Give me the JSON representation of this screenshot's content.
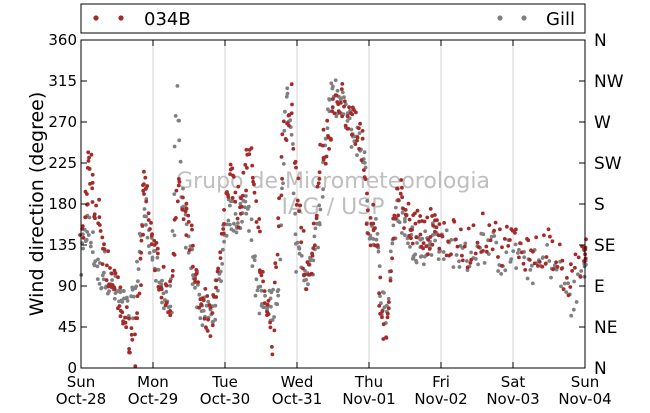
{
  "chart_data": {
    "type": "scatter",
    "title": "",
    "ylabel": "Wind direction (degree)",
    "xlabel": "",
    "ylim": [
      0,
      360
    ],
    "yticks": [
      0,
      45,
      90,
      135,
      180,
      225,
      270,
      315,
      360
    ],
    "xlim": [
      "2012-10-28 00:00",
      "2012-11-04 00:00"
    ],
    "x_ticks": [
      {
        "day": "Sun",
        "date": "Oct-28"
      },
      {
        "day": "Mon",
        "date": "Oct-29"
      },
      {
        "day": "Tue",
        "date": "Oct-30"
      },
      {
        "day": "Wed",
        "date": "Oct-31"
      },
      {
        "day": "Thu",
        "date": "Nov-01"
      },
      {
        "day": "Fri",
        "date": "Nov-02"
      },
      {
        "day": "Sat",
        "date": "Nov-03"
      },
      {
        "day": "Sun",
        "date": "Nov-04"
      }
    ],
    "compass_labels": [
      "N",
      "NE",
      "E",
      "SE",
      "S",
      "SW",
      "W",
      "NW",
      "N"
    ],
    "grid": "vertical",
    "legend_position": "top",
    "watermark": [
      "Grupo de Micrometeorologia",
      "IAG / USP"
    ],
    "series": [
      {
        "name": "034B",
        "color": "#a52a2a",
        "points": [
          [
            "2012-10-28 00:00",
            130
          ],
          [
            "2012-10-28 02:00",
            185
          ],
          [
            "2012-10-28 03:00",
            230
          ],
          [
            "2012-10-28 04:00",
            190
          ],
          [
            "2012-10-28 06:00",
            160
          ],
          [
            "2012-10-28 08:00",
            120
          ],
          [
            "2012-10-28 10:00",
            100
          ],
          [
            "2012-10-28 12:00",
            85
          ],
          [
            "2012-10-28 14:00",
            60
          ],
          [
            "2012-10-28 16:00",
            40
          ],
          [
            "2012-10-28 18:00",
            20
          ],
          [
            "2012-10-28 20:00",
            120
          ],
          [
            "2012-10-28 21:00",
            200
          ],
          [
            "2012-10-28 22:00",
            185
          ],
          [
            "2012-10-29 00:00",
            130
          ],
          [
            "2012-10-29 02:00",
            110
          ],
          [
            "2012-10-29 04:00",
            90
          ],
          [
            "2012-10-29 06:00",
            75
          ],
          [
            "2012-10-29 08:00",
            200
          ],
          [
            "2012-10-29 10:00",
            180
          ],
          [
            "2012-10-29 12:00",
            145
          ],
          [
            "2012-10-29 14:00",
            110
          ],
          [
            "2012-10-29 16:00",
            75
          ],
          [
            "2012-10-29 18:00",
            60
          ],
          [
            "2012-10-29 20:00",
            50
          ],
          [
            "2012-10-29 22:00",
            100
          ],
          [
            "2012-10-30 00:00",
            175
          ],
          [
            "2012-10-30 02:00",
            210
          ],
          [
            "2012-10-30 04:00",
            170
          ],
          [
            "2012-10-30 06:00",
            200
          ],
          [
            "2012-10-30 08:00",
            230
          ],
          [
            "2012-10-30 10:00",
            190
          ],
          [
            "2012-10-30 12:00",
            120
          ],
          [
            "2012-10-30 14:00",
            60
          ],
          [
            "2012-10-30 16:00",
            30
          ],
          [
            "2012-10-30 18:00",
            180
          ],
          [
            "2012-10-30 20:00",
            260
          ],
          [
            "2012-10-30 22:00",
            300
          ],
          [
            "2012-10-31 00:00",
            200
          ],
          [
            "2012-10-31 02:00",
            130
          ],
          [
            "2012-10-31 04:00",
            90
          ],
          [
            "2012-10-31 06:00",
            150
          ],
          [
            "2012-10-31 08:00",
            230
          ],
          [
            "2012-10-31 10:00",
            250
          ],
          [
            "2012-10-31 12:00",
            275
          ],
          [
            "2012-10-31 14:00",
            300
          ],
          [
            "2012-10-31 16:00",
            290
          ],
          [
            "2012-10-31 18:00",
            270
          ],
          [
            "2012-10-31 20:00",
            255
          ],
          [
            "2012-10-31 22:00",
            240
          ],
          [
            "2012-11-01 00:00",
            150
          ],
          [
            "2012-11-01 02:00",
            160
          ],
          [
            "2012-11-01 04:00",
            60
          ],
          [
            "2012-11-01 06:00",
            40
          ],
          [
            "2012-11-01 08:00",
            160
          ],
          [
            "2012-11-01 10:00",
            190
          ],
          [
            "2012-11-01 12:00",
            170
          ],
          [
            "2012-11-01 14:00",
            150
          ],
          [
            "2012-11-01 16:00",
            160
          ],
          [
            "2012-11-01 18:00",
            140
          ],
          [
            "2012-11-01 20:00",
            150
          ],
          [
            "2012-11-01 22:00",
            160
          ],
          [
            "2012-11-02 00:00",
            145
          ],
          [
            "2012-11-02 04:00",
            140
          ],
          [
            "2012-11-02 08:00",
            130
          ],
          [
            "2012-11-02 12:00",
            145
          ],
          [
            "2012-11-02 16:00",
            150
          ],
          [
            "2012-11-02 20:00",
            135
          ],
          [
            "2012-11-03 00:00",
            140
          ],
          [
            "2012-11-03 04:00",
            130
          ],
          [
            "2012-11-03 08:00",
            125
          ],
          [
            "2012-11-03 12:00",
            135
          ],
          [
            "2012-11-03 16:00",
            110
          ],
          [
            "2012-11-03 20:00",
            90
          ],
          [
            "2012-11-04 00:00",
            135
          ]
        ]
      },
      {
        "name": "Gill",
        "color": "#808080",
        "points": [
          [
            "2012-10-28 00:00",
            110
          ],
          [
            "2012-10-28 02:00",
            160
          ],
          [
            "2012-10-28 04:00",
            130
          ],
          [
            "2012-10-28 06:00",
            100
          ],
          [
            "2012-10-28 08:00",
            110
          ],
          [
            "2012-10-28 10:00",
            90
          ],
          [
            "2012-10-28 12:00",
            80
          ],
          [
            "2012-10-28 14:00",
            70
          ],
          [
            "2012-10-28 16:00",
            60
          ],
          [
            "2012-10-28 18:00",
            80
          ],
          [
            "2012-10-28 20:00",
            150
          ],
          [
            "2012-10-28 22:00",
            170
          ],
          [
            "2012-10-29 00:00",
            120
          ],
          [
            "2012-10-29 02:00",
            95
          ],
          [
            "2012-10-29 04:00",
            80
          ],
          [
            "2012-10-29 06:00",
            70
          ],
          [
            "2012-10-29 08:00",
            290
          ],
          [
            "2012-10-29 10:00",
            170
          ],
          [
            "2012-10-29 12:00",
            130
          ],
          [
            "2012-10-29 14:00",
            100
          ],
          [
            "2012-10-29 16:00",
            65
          ],
          [
            "2012-10-29 18:00",
            55
          ],
          [
            "2012-10-29 20:00",
            60
          ],
          [
            "2012-10-29 22:00",
            90
          ],
          [
            "2012-10-30 00:00",
            160
          ],
          [
            "2012-10-30 02:00",
            170
          ],
          [
            "2012-10-30 04:00",
            165
          ],
          [
            "2012-10-30 06:00",
            175
          ],
          [
            "2012-10-30 08:00",
            180
          ],
          [
            "2012-10-30 10:00",
            100
          ],
          [
            "2012-10-30 12:00",
            70
          ],
          [
            "2012-10-30 14:00",
            65
          ],
          [
            "2012-10-30 16:00",
            70
          ],
          [
            "2012-10-30 18:00",
            90
          ],
          [
            "2012-10-30 20:00",
            300
          ],
          [
            "2012-10-30 22:00",
            280
          ],
          [
            "2012-10-31 00:00",
            120
          ],
          [
            "2012-10-31 02:00",
            110
          ],
          [
            "2012-10-31 04:00",
            100
          ],
          [
            "2012-10-31 06:00",
            130
          ],
          [
            "2012-10-31 08:00",
            180
          ],
          [
            "2012-10-31 10:00",
            275
          ],
          [
            "2012-10-31 12:00",
            300
          ],
          [
            "2012-10-31 14:00",
            290
          ],
          [
            "2012-10-31 16:00",
            280
          ],
          [
            "2012-10-31 18:00",
            260
          ],
          [
            "2012-10-31 20:00",
            250
          ],
          [
            "2012-10-31 22:00",
            240
          ],
          [
            "2012-11-01 00:00",
            150
          ],
          [
            "2012-11-01 02:00",
            155
          ],
          [
            "2012-11-01 04:00",
            80
          ],
          [
            "2012-11-01 06:00",
            60
          ],
          [
            "2012-11-01 08:00",
            150
          ],
          [
            "2012-11-01 10:00",
            170
          ],
          [
            "2012-11-01 12:00",
            160
          ],
          [
            "2012-11-01 14:00",
            140
          ],
          [
            "2012-11-01 16:00",
            135
          ],
          [
            "2012-11-01 18:00",
            130
          ],
          [
            "2012-11-01 20:00",
            140
          ],
          [
            "2012-11-01 22:00",
            145
          ],
          [
            "2012-11-02 00:00",
            135
          ],
          [
            "2012-11-02 04:00",
            130
          ],
          [
            "2012-11-02 08:00",
            120
          ],
          [
            "2012-11-02 12:00",
            130
          ],
          [
            "2012-11-02 16:00",
            135
          ],
          [
            "2012-11-02 20:00",
            120
          ],
          [
            "2012-11-03 00:00",
            125
          ],
          [
            "2012-11-03 04:00",
            115
          ],
          [
            "2012-11-03 08:00",
            110
          ],
          [
            "2012-11-03 12:00",
            120
          ],
          [
            "2012-11-03 16:00",
            100
          ],
          [
            "2012-11-03 20:00",
            70
          ],
          [
            "2012-11-04 00:00",
            120
          ]
        ]
      }
    ]
  }
}
